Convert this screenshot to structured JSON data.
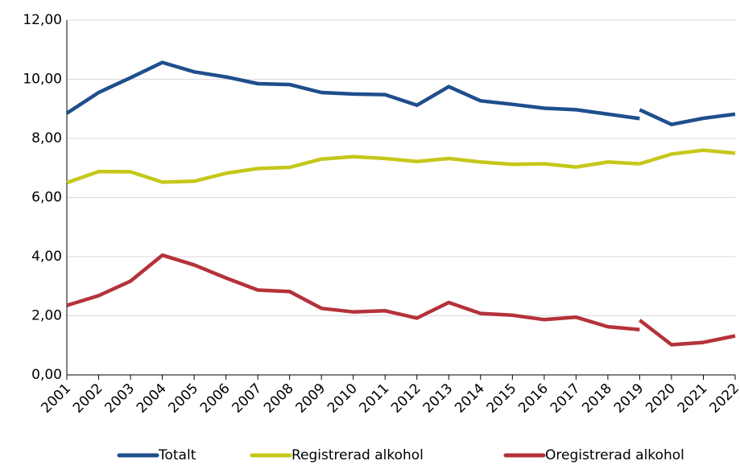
{
  "chart_data": {
    "type": "line",
    "x": [
      2001,
      2002,
      2003,
      2004,
      2005,
      2006,
      2007,
      2008,
      2009,
      2010,
      2011,
      2012,
      2013,
      2014,
      2015,
      2016,
      2017,
      2018,
      2019,
      2019,
      2019,
      2020,
      2021,
      2022
    ],
    "series": [
      {
        "name": "Totalt",
        "color": "#1f4e8c",
        "values": [
          8.85,
          9.55,
          10.05,
          10.57,
          10.25,
          10.08,
          9.85,
          9.82,
          9.55,
          9.5,
          9.48,
          9.12,
          9.75,
          9.27,
          9.15,
          9.02,
          8.97,
          8.82,
          8.67,
          null,
          8.97,
          8.47,
          8.68,
          8.82
        ]
      },
      {
        "name": "Registrerad alkohol",
        "color": "#c5c81a",
        "values": [
          6.5,
          6.88,
          6.87,
          6.52,
          6.55,
          6.82,
          6.98,
          7.02,
          7.3,
          7.38,
          7.32,
          7.22,
          7.32,
          7.2,
          7.12,
          7.14,
          7.03,
          7.2,
          7.14,
          null,
          7.14,
          7.47,
          7.6,
          7.5
        ]
      },
      {
        "name": "Oregistrerad alkohol",
        "color": "#b5323b",
        "values": [
          2.35,
          2.68,
          3.17,
          4.05,
          3.72,
          3.28,
          2.87,
          2.82,
          2.25,
          2.13,
          2.17,
          1.92,
          2.45,
          2.08,
          2.02,
          1.87,
          1.95,
          1.63,
          1.53,
          null,
          1.85,
          1.02,
          1.1,
          1.32
        ]
      }
    ],
    "xlim": [
      2001,
      2022
    ],
    "xticks": [
      2001,
      2002,
      2003,
      2004,
      2005,
      2006,
      2007,
      2008,
      2009,
      2010,
      2011,
      2012,
      2013,
      2014,
      2015,
      2016,
      2017,
      2018,
      2019,
      2020,
      2021,
      2022
    ],
    "ylim": [
      0,
      12
    ],
    "yticks": [
      {
        "value": 0,
        "label": "0,00"
      },
      {
        "value": 2,
        "label": "2,00"
      },
      {
        "value": 4,
        "label": "4,00"
      },
      {
        "value": 6,
        "label": "6,00"
      },
      {
        "value": 8,
        "label": "8,00"
      },
      {
        "value": 10,
        "label": "10,00"
      },
      {
        "value": 12,
        "label": "12,00"
      }
    ],
    "grid": true,
    "legend": "bottom"
  }
}
